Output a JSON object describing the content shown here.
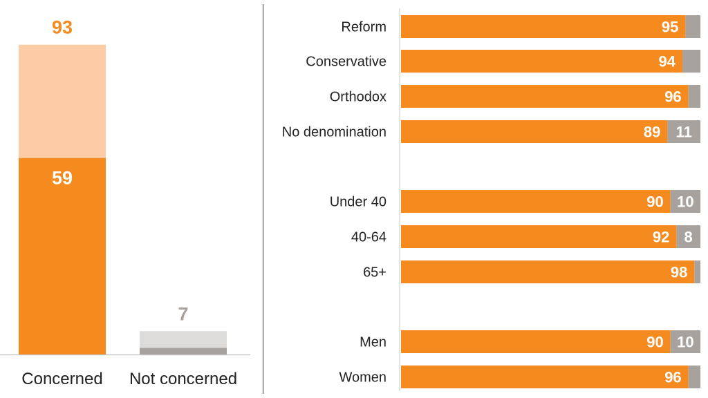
{
  "colors": {
    "concerned": "#F58A1F",
    "concerned_light": "#FCCCA4",
    "not_concerned": "#A8A29E",
    "not_concerned_light": "#DEDCDA",
    "value_label_on_bar": "#FFFFFF",
    "category_label": "#222222",
    "axis": "#C8C8C8"
  },
  "chart_data": [
    {
      "type": "bar",
      "stacked": true,
      "categories": [
        "Concerned",
        "Not concerned"
      ],
      "series": [
        {
          "name": "",
          "values": [
            59,
            2
          ]
        },
        {
          "name": "",
          "values": [
            34,
            5
          ]
        }
      ],
      "totals": [
        93,
        7
      ],
      "data_labels": {
        "inner": [
          "59",
          ""
        ],
        "total": [
          "93",
          "7"
        ]
      },
      "ylim": [
        0,
        100
      ],
      "grid": false
    },
    {
      "type": "bar",
      "orientation": "horizontal",
      "stacked": true,
      "groups": [
        [
          "Reform",
          "Conservative",
          "Orthodox",
          "No denomination"
        ],
        [
          "Under 40",
          "40-64",
          "65+"
        ],
        [
          "Men",
          "Women"
        ]
      ],
      "categories": [
        "Reform",
        "Conservative",
        "Orthodox",
        "No denomination",
        "Under 40",
        "40-64",
        "65+",
        "Men",
        "Women"
      ],
      "series": [
        {
          "name": "",
          "values": [
            95,
            94,
            96,
            89,
            90,
            92,
            98,
            90,
            96
          ]
        },
        {
          "name": "",
          "values": [
            5,
            6,
            4,
            11,
            10,
            8,
            2,
            10,
            4
          ]
        }
      ],
      "data_labels": [
        [
          "95",
          "94",
          "96",
          "89",
          "90",
          "92",
          "98",
          "90",
          "96"
        ],
        [
          "",
          "",
          "",
          "11",
          "10",
          "8",
          "",
          "10",
          ""
        ]
      ],
      "xlim": [
        0,
        100
      ],
      "grid": false
    }
  ]
}
